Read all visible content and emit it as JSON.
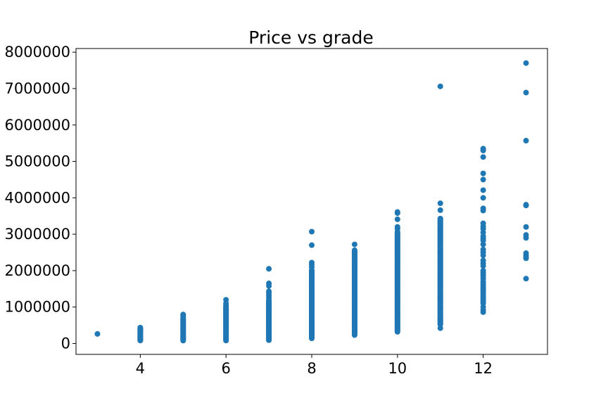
{
  "chart_data": {
    "type": "scatter",
    "title": "Price vs grade",
    "xlabel": "",
    "ylabel": "",
    "xlim": [
      2.5,
      13.5
    ],
    "ylim": [
      -300000,
      8100000
    ],
    "grid": false,
    "legend": "none",
    "x_ticks": [
      4,
      6,
      8,
      10,
      12
    ],
    "x_tick_labels": [
      "4",
      "6",
      "8",
      "10",
      "12"
    ],
    "y_ticks": [
      0,
      1000000,
      2000000,
      3000000,
      4000000,
      5000000,
      6000000,
      7000000,
      8000000
    ],
    "y_tick_labels": [
      "0",
      "1000000",
      "2000000",
      "3000000",
      "4000000",
      "5000000",
      "6000000",
      "7000000",
      "8000000"
    ],
    "marker_color": "#1f77b4",
    "columns": [
      {
        "x": 3,
        "values": [
          262000
        ]
      },
      {
        "x": 4,
        "range": [
          80000,
          430000
        ],
        "values": [
          435000,
          400000,
          370000,
          330000,
          290000,
          250000,
          210000,
          170000,
          130000,
          90000
        ]
      },
      {
        "x": 5,
        "range": [
          78000,
          680000
        ],
        "values": [
          795000,
          760000,
          720000
        ]
      },
      {
        "x": 6,
        "range": [
          80000,
          1050000
        ],
        "values": [
          1200000,
          1100000
        ]
      },
      {
        "x": 7,
        "range": [
          90000,
          1180000
        ],
        "values": [
          2050000,
          1650000,
          1580000,
          1430000,
          1380000,
          1310000,
          1250000
        ]
      },
      {
        "x": 8,
        "range": [
          140000,
          2010000
        ],
        "values": [
          3070000,
          2700000,
          2220000,
          2160000,
          2100000
        ]
      },
      {
        "x": 9,
        "range": [
          230000,
          2560000
        ],
        "values": [
          2720000,
          2480000,
          2420000,
          2350000
        ]
      },
      {
        "x": 10,
        "range": [
          320000,
          3060000
        ],
        "values": [
          3610000,
          3580000,
          3410000,
          3200000,
          3150000
        ]
      },
      {
        "x": 11,
        "range": [
          520000,
          3430000
        ],
        "values": [
          7060000,
          3850000,
          3660000,
          420000
        ]
      },
      {
        "x": 12,
        "values": [
          5350000,
          5300000,
          5120000,
          4670000,
          4500000,
          4210000,
          4000000,
          3710000,
          3650000,
          3300000,
          3220000,
          3150000,
          3050000,
          2950000,
          2880000,
          2830000,
          2720000,
          2580000,
          2500000,
          2420000,
          2280000,
          2200000,
          2130000,
          2000000,
          1950000,
          1900000,
          1850000,
          1780000,
          1700000,
          1650000,
          1600000,
          1550000,
          1500000,
          1450000,
          1400000,
          1350000,
          1300000,
          1250000,
          1200000,
          1150000,
          1100000,
          1000000,
          920000,
          860000
        ]
      },
      {
        "x": 13,
        "values": [
          7700000,
          6890000,
          5570000,
          3810000,
          3790000,
          3200000,
          2980000,
          2900000,
          2480000,
          2420000,
          2380000,
          2340000,
          1780000
        ]
      }
    ]
  }
}
